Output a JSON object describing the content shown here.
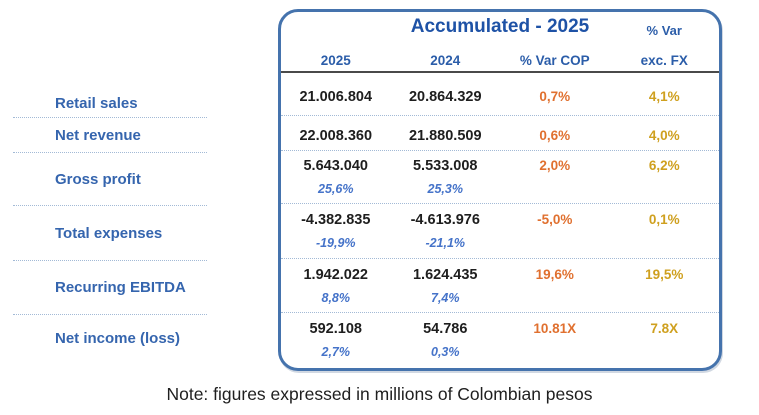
{
  "table": {
    "title": "Accumulated - 2025",
    "col_headers": {
      "col_2025": "2025",
      "col_2024": "2024",
      "col_var_cop": "% Var COP",
      "col_var_fx_line1": "% Var",
      "col_var_fx_line2": "exc. FX"
    },
    "rows": [
      {
        "label": "Retail sales",
        "v2025": "21.006.804",
        "v2024": "20.864.329",
        "var_cop": "0,7%",
        "var_fx": "4,1%"
      },
      {
        "label": "Net revenue",
        "v2025": "22.008.360",
        "v2024": "21.880.509",
        "var_cop": "0,6%",
        "var_fx": "4,0%"
      },
      {
        "label": "Gross profit",
        "v2025": "5.643.040",
        "sub2025": "25,6%",
        "v2024": "5.533.008",
        "sub2024": "25,3%",
        "var_cop": "2,0%",
        "var_fx": "6,2%"
      },
      {
        "label": "Total expenses",
        "v2025": "-4.382.835",
        "sub2025": "-19,9%",
        "v2024": "-4.613.976",
        "sub2024": "-21,1%",
        "var_cop": "-5,0%",
        "var_fx": "0,1%"
      },
      {
        "label": "Recurring EBITDA",
        "v2025": "1.942.022",
        "sub2025": "8,8%",
        "v2024": "1.624.435",
        "sub2024": "7,4%",
        "var_cop": "19,6%",
        "var_fx": "19,5%"
      },
      {
        "label": "Net income (loss)",
        "v2025": "592.108",
        "sub2025": "2,7%",
        "v2024": "54.786",
        "sub2024": "0,3%",
        "var_cop": "10.81X",
        "var_fx": "7.8X"
      }
    ]
  },
  "note": "Note: figures expressed in millions of Colombian pesos",
  "colors": {
    "label_blue": "#3565AE",
    "title_blue": "#1E52A6",
    "header_blue": "#2B5DA9",
    "sub_value_blue": "#4573C9",
    "value_black": "#1E1E1E",
    "var_cop_orange": "#E0702F",
    "var_fx_gold": "#CFA01F",
    "box_border_blue": "#4573AD",
    "dotted_separator": "#A3BAD6",
    "header_divider_gray": "#4a4a4a"
  }
}
